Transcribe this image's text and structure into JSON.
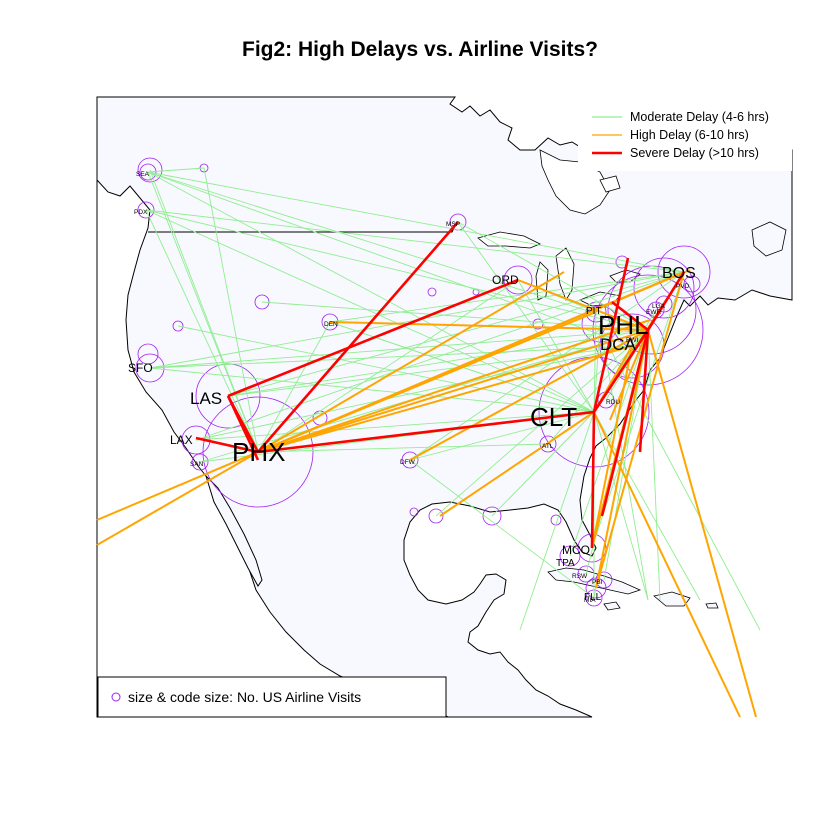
{
  "title": "Fig2: High Delays vs. Airline Visits?",
  "legend": {
    "items": [
      {
        "label": "Moderate Delay (4-6 hrs)",
        "color": "#90ee90"
      },
      {
        "label": "High Delay (6-10 hrs)",
        "color": "#ffa500"
      },
      {
        "label": "Severe Delay (>10 hrs)",
        "color": "#ff0000"
      }
    ]
  },
  "size_legend": {
    "label": "size & code size: No. US Airline Visits",
    "symbol_color": "#a020f0"
  },
  "colors": {
    "land": "#f8f8ff",
    "water": "#ffffff",
    "border": "#000000",
    "circle": "#a020f0"
  },
  "airports": [
    {
      "code": "PHX",
      "size": "xl"
    },
    {
      "code": "PHL",
      "size": "xl"
    },
    {
      "code": "CLT",
      "size": "xl"
    },
    {
      "code": "LAS",
      "size": "l"
    },
    {
      "code": "DCA",
      "size": "l"
    },
    {
      "code": "BOS",
      "size": "m"
    },
    {
      "code": "ORD",
      "size": "s"
    },
    {
      "code": "LAX",
      "size": "s"
    },
    {
      "code": "SFO",
      "size": "s"
    },
    {
      "code": "MCO",
      "size": "s"
    },
    {
      "code": "TPA",
      "size": "xs"
    },
    {
      "code": "FLL",
      "size": "xs"
    },
    {
      "code": "PIT",
      "size": "xs"
    },
    {
      "code": "DFW",
      "size": "xxs"
    },
    {
      "code": "ATL",
      "size": "xxs"
    },
    {
      "code": "DEN",
      "size": "xxs"
    },
    {
      "code": "SEA",
      "size": "xxs"
    },
    {
      "code": "PDX",
      "size": "xxs"
    },
    {
      "code": "MSP",
      "size": "xxs"
    },
    {
      "code": "SAN",
      "size": "xxs"
    },
    {
      "code": "RDU",
      "size": "xxs"
    },
    {
      "code": "LGA",
      "size": "xxs"
    },
    {
      "code": "EWR",
      "size": "xxs"
    },
    {
      "code": "BWI",
      "size": "xxs"
    },
    {
      "code": "PVD",
      "size": "xxs"
    },
    {
      "code": "RSW",
      "size": "xxs"
    },
    {
      "code": "PBI",
      "size": "xxs"
    },
    {
      "code": "MIA",
      "size": "xxs"
    }
  ]
}
